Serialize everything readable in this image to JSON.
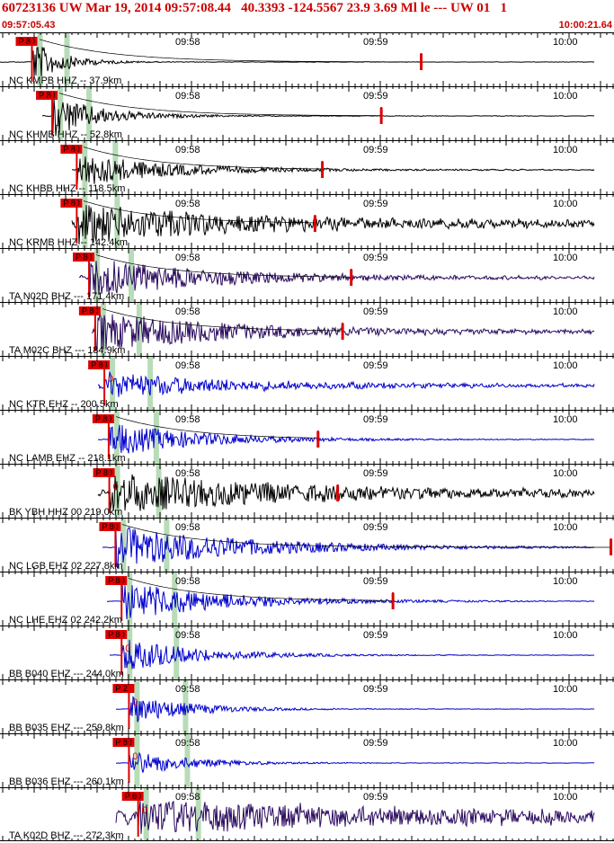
{
  "header": {
    "title": "60723136 UW Mar 19, 2014 09:57:08.44   40.3393 -124.5567 23.9 3.69 Ml le --- UW 01   1",
    "start_time": "09:57:05.43",
    "end_time": "10:00:21.64"
  },
  "time_labels": [
    "09:58",
    "09:59",
    "10:00"
  ],
  "colors": {
    "black_trace": "#000000",
    "purple_trace": "#2a0a5e",
    "blue_trace": "#0000cc",
    "pick": "#dd0000",
    "green_band": "#b8dcb8",
    "grid": "#000000"
  },
  "traces": [
    {
      "label": "NC KMPB HHZ -- 37.9km",
      "phase": "P 80",
      "color": "black",
      "phase_mark": "",
      "start": 0.0,
      "p": 0.052,
      "amp": 1.0,
      "decay": 0.1,
      "noise": 0.02,
      "end_pick": 0.686,
      "curve": true
    },
    {
      "label": "NC KHMB HHZ -- 52.8km",
      "phase": "P 80",
      "color": "black",
      "phase_mark": "",
      "start": 0.04,
      "p": 0.085,
      "amp": 1.0,
      "decay": 0.16,
      "noise": 0.03,
      "end_pick": 0.621,
      "curve": true
    },
    {
      "label": "NC KHBB HHZ -- 118.5km",
      "phase": "P 80",
      "color": "black",
      "phase_mark": "",
      "start": 0.088,
      "p": 0.125,
      "amp": 0.8,
      "decay": 0.3,
      "noise": 0.05,
      "end_pick": 0.525,
      "curve": true
    },
    {
      "label": "NC KRMB HHZ -- 142.4km",
      "phase": "P 80",
      "color": "black",
      "phase_mark": "",
      "start": 0.088,
      "p": 0.125,
      "amp": 0.9,
      "decay": 0.5,
      "noise": 0.3,
      "end_pick": 0.513,
      "curve": true
    },
    {
      "label": "TA N02D BHZ --- 171.4km",
      "phase": "P 80",
      "color": "purple",
      "phase_mark": "",
      "start": 0.1,
      "p": 0.145,
      "amp": 0.9,
      "decay": 0.4,
      "noise": 0.12,
      "end_pick": 0.572,
      "curve": true
    },
    {
      "label": "TA M02C BHZ --- 184.9km",
      "phase": "P 80",
      "color": "purple",
      "phase_mark": "",
      "start": 0.12,
      "p": 0.155,
      "amp": 0.9,
      "decay": 0.45,
      "noise": 0.15,
      "end_pick": 0.558,
      "curve": true
    },
    {
      "label": "NC KTR EHZ -- 200.5km",
      "phase": "P 80",
      "color": "blue",
      "phase_mark": "0",
      "start": 0.13,
      "p": 0.17,
      "amp": 0.6,
      "decay": 0.4,
      "noise": 0.15,
      "end_pick": null,
      "curve": false
    },
    {
      "label": "NC LAMB EHZ -- 218.1km",
      "phase": "P 80",
      "color": "blue",
      "phase_mark": "",
      "start": 0.13,
      "p": 0.177,
      "amp": 0.8,
      "decay": 0.3,
      "noise": 0.03,
      "end_pick": 0.518,
      "curve": true
    },
    {
      "label": "BK YBH HHZ 00 219.0km",
      "phase": "P 80",
      "color": "black",
      "phase_mark": "0",
      "start": 0.13,
      "p": 0.178,
      "amp": 0.9,
      "decay": 0.6,
      "noise": 0.25,
      "end_pick": 0.55,
      "curve": false
    },
    {
      "label": "NC LGB EHZ 02 227.8km",
      "phase": "P 80",
      "color": "blue",
      "phase_mark": "",
      "start": 0.137,
      "p": 0.188,
      "amp": 1.0,
      "decay": 0.45,
      "noise": 0.02,
      "end_pick": 0.995,
      "curve": true
    },
    {
      "label": "NC LHE EHZ 02 242.2km",
      "phase": "P 80",
      "color": "blue",
      "phase_mark": "",
      "start": 0.145,
      "p": 0.198,
      "amp": 0.9,
      "decay": 0.35,
      "noise": 0.02,
      "end_pick": 0.64,
      "curve": true
    },
    {
      "label": "BB B040 EHZ --- 244.0km",
      "phase": "P 80",
      "color": "blue",
      "phase_mark": "0",
      "start": 0.15,
      "p": 0.198,
      "amp": 0.8,
      "decay": 0.25,
      "noise": 0.02,
      "end_pick": null,
      "curve": false
    },
    {
      "label": "BB B035 EHZ --- 259.8km",
      "phase": "P 2",
      "color": "blue",
      "phase_mark": "0",
      "start": 0.16,
      "p": 0.21,
      "amp": 0.7,
      "decay": 0.2,
      "noise": 0.02,
      "end_pick": null,
      "curve": false
    },
    {
      "label": "BB B036 EHZ --- 260.1km",
      "phase": "P 80",
      "color": "blue",
      "phase_mark": "0",
      "start": 0.16,
      "p": 0.21,
      "amp": 0.6,
      "decay": 0.2,
      "noise": 0.02,
      "end_pick": null,
      "curve": false
    },
    {
      "label": "TA K02D BHZ --- 272.3km",
      "phase": "P 80",
      "color": "purple",
      "phase_mark": "0",
      "start": 0.16,
      "p": 0.225,
      "amp": 0.7,
      "decay": 0.8,
      "noise": 0.45,
      "end_pick": null,
      "curve": false
    }
  ]
}
